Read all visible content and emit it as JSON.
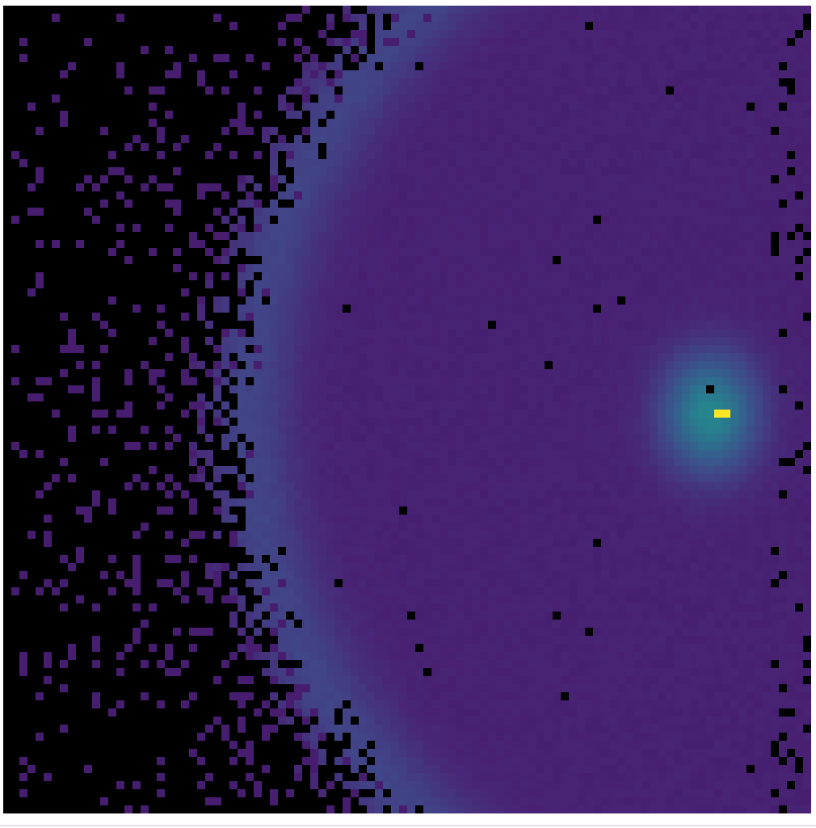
{
  "chart_data": {
    "type": "heatmap",
    "title": "",
    "xlabel": "",
    "ylabel": "",
    "grid": false,
    "colormap": "viridis",
    "background_color": "#000000",
    "value_range": [
      0,
      1
    ],
    "grid_resolution": [
      100,
      100
    ],
    "features": [
      {
        "name": "",
        "kind": "arc",
        "description_values": {
          "center_col": 100,
          "center_row": 50,
          "radius": 70,
          "thickness": 4,
          "intensity": 0.22
        }
      },
      {
        "name": "",
        "kind": "blob",
        "description_values": {
          "center_col": 87,
          "center_row": 50,
          "spread_col": 4,
          "spread_row": 5,
          "intensity": 0.45
        }
      },
      {
        "name": "",
        "kind": "peak",
        "description_values": {
          "col": 88,
          "row": 50,
          "intensity": 1.0
        }
      }
    ],
    "base_level": 0.12,
    "noise_fringe_start_col": 33
  }
}
